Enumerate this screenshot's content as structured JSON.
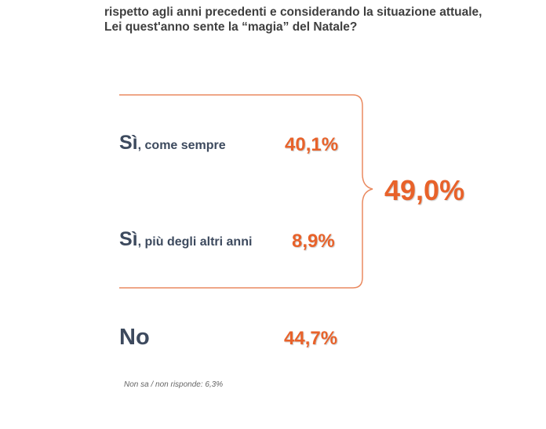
{
  "question": {
    "line1": "rispetto agli anni precedenti e considerando la situazione attuale,",
    "line2": "Lei quest'anno sente la “magia” del Natale?"
  },
  "answers": [
    {
      "prefix": "Sì",
      "label": ", come sempre",
      "value": "40,1%"
    },
    {
      "prefix": "Sì",
      "label": ", più degli altri anni",
      "value": "8,9%"
    },
    {
      "prefix": "No",
      "label": "",
      "value": "44,7%"
    }
  ],
  "yes_total": "49,0%",
  "footnote": "Non sa / non risponde: 6,3%",
  "colors": {
    "accent": "#e8622a",
    "text": "#3d4a5e"
  }
}
